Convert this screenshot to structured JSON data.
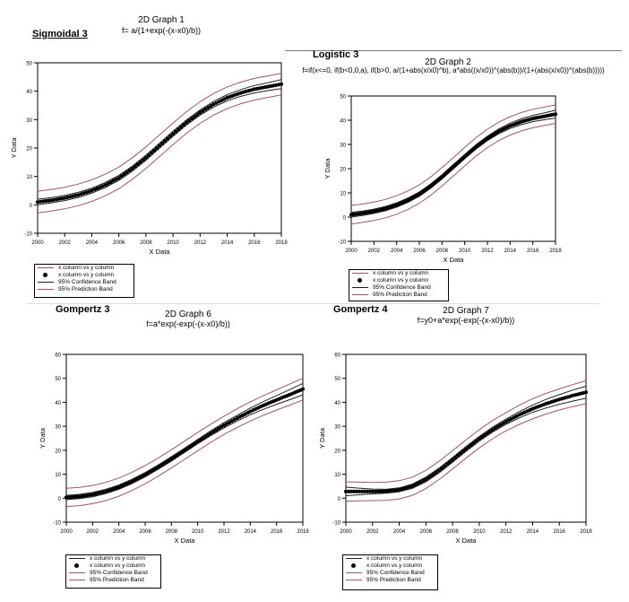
{
  "separator_color": "#777777",
  "colors": {
    "data": "#000000",
    "confidence": "#202020",
    "prediction": "#9a5a5a"
  },
  "charts": [
    {
      "model_label": "Sigmoidal 3",
      "title": "2D Graph 1",
      "formula": "f= a/(1+exp(-(x-x0)/b))",
      "legend": [
        "x column vs y column",
        "x column vs y column",
        "95% Confidence Band",
        "95% Prediction Band"
      ]
    },
    {
      "model_label": "Logistic 3",
      "title": "2D Graph 2",
      "formula": "f=if(x<=0, if(b<0,0,a), if(b>0, a/(1+abs(x/x0)^b), a*abs((x/x0))^(abs(b))/(1+(abs(x/x0))^(abs(b)))))",
      "legend": [
        "x column vs y column",
        "x column vs y column",
        "95% Confidence Band",
        "95% Prediction Band"
      ]
    },
    {
      "model_label": "Gompertz 3",
      "title": "2D Graph 6",
      "formula": "f=a*exp(-exp(-(x-x0)/b))",
      "legend": [
        "x column vs y column",
        "x column vs y column",
        "95% Confidence Band",
        "95% Prediction Band"
      ]
    },
    {
      "model_label": "Gompertz 4",
      "title": "2D Graph 7",
      "formula": "f=y0+a*exp(-exp(-(x-x0)/b))",
      "legend": [
        "x column vs y column",
        "x column vs y column",
        "95% Confidence Band",
        "95% Prediction Band"
      ]
    }
  ],
  "chart_data": [
    {
      "type": "line",
      "title": "2D Graph 1",
      "xlabel": "X Data",
      "ylabel": "Y Data",
      "xlim": [
        2000,
        2018
      ],
      "ylim": [
        -10,
        50
      ],
      "xticks": [
        2000,
        2002,
        2004,
        2006,
        2008,
        2010,
        2012,
        2014,
        2016,
        2018
      ],
      "yticks": [
        -10,
        0,
        10,
        20,
        30,
        40,
        50
      ],
      "x": [
        2000,
        2001,
        2002,
        2003,
        2004,
        2005,
        2006,
        2007,
        2008,
        2009,
        2010,
        2011,
        2012,
        2013,
        2014,
        2015,
        2016,
        2017,
        2018
      ],
      "series": [
        {
          "name": "x column vs y column",
          "values": [
            1.0,
            1.6,
            2.4,
            3.5,
            5.0,
            7.0,
            9.5,
            12.8,
            16.6,
            20.8,
            25.0,
            29.0,
            32.5,
            35.4,
            37.7,
            39.4,
            40.7,
            41.6,
            42.5
          ]
        },
        {
          "name": "95% Confidence Band",
          "values": [
            0.0,
            0.7,
            1.5,
            2.6,
            4.1,
            6.1,
            8.6,
            11.9,
            15.7,
            19.9,
            24.1,
            28.1,
            31.6,
            34.4,
            36.6,
            38.2,
            39.4,
            40.2,
            40.9
          ]
        },
        {
          "name": "95% Confidence Band",
          "values": [
            2.0,
            2.5,
            3.3,
            4.4,
            5.9,
            7.9,
            10.4,
            13.7,
            17.5,
            21.7,
            25.9,
            29.9,
            33.4,
            36.4,
            38.8,
            40.6,
            42.0,
            43.0,
            44.1
          ]
        },
        {
          "name": "95% Prediction Band",
          "values": [
            -2.8,
            -2.2,
            -1.4,
            -0.3,
            1.2,
            3.2,
            5.7,
            9.0,
            12.8,
            17.0,
            21.2,
            25.2,
            28.7,
            31.6,
            33.9,
            35.6,
            36.9,
            37.8,
            38.7
          ]
        },
        {
          "name": "95% Prediction Band",
          "values": [
            4.8,
            5.4,
            6.2,
            7.3,
            8.8,
            10.8,
            13.3,
            16.6,
            20.4,
            24.6,
            28.8,
            32.8,
            36.3,
            39.2,
            41.5,
            43.2,
            44.5,
            45.4,
            46.3
          ]
        }
      ]
    },
    {
      "type": "line",
      "title": "2D Graph 2",
      "xlabel": "X Data",
      "ylabel": "Y Data",
      "xlim": [
        2000,
        2018
      ],
      "ylim": [
        -10,
        50
      ],
      "xticks": [
        2000,
        2002,
        2004,
        2006,
        2008,
        2010,
        2012,
        2014,
        2016,
        2018
      ],
      "yticks": [
        -10,
        0,
        10,
        20,
        30,
        40,
        50
      ],
      "x": [
        2000,
        2001,
        2002,
        2003,
        2004,
        2005,
        2006,
        2007,
        2008,
        2009,
        2010,
        2011,
        2012,
        2013,
        2014,
        2015,
        2016,
        2017,
        2018
      ],
      "series": [
        {
          "name": "x column vs y column",
          "values": [
            1.0,
            1.6,
            2.4,
            3.5,
            5.0,
            7.0,
            9.5,
            12.8,
            16.6,
            20.8,
            25.0,
            29.0,
            32.5,
            35.4,
            37.7,
            39.4,
            40.7,
            41.6,
            42.5
          ]
        },
        {
          "name": "95% Confidence Band",
          "values": [
            0.0,
            0.7,
            1.5,
            2.6,
            4.1,
            6.1,
            8.6,
            11.9,
            15.7,
            19.9,
            24.1,
            28.1,
            31.6,
            34.4,
            36.6,
            38.2,
            39.4,
            40.2,
            40.9
          ]
        },
        {
          "name": "95% Confidence Band",
          "values": [
            2.0,
            2.5,
            3.3,
            4.4,
            5.9,
            7.9,
            10.4,
            13.7,
            17.5,
            21.7,
            25.9,
            29.9,
            33.4,
            36.4,
            38.8,
            40.6,
            42.0,
            43.0,
            44.1
          ]
        },
        {
          "name": "95% Prediction Band",
          "values": [
            -2.8,
            -2.2,
            -1.4,
            -0.3,
            1.2,
            3.2,
            5.7,
            9.0,
            12.8,
            17.0,
            21.2,
            25.2,
            28.7,
            31.6,
            33.9,
            35.6,
            36.9,
            37.8,
            38.7
          ]
        },
        {
          "name": "95% Prediction Band",
          "values": [
            4.8,
            5.4,
            6.2,
            7.3,
            8.8,
            10.8,
            13.3,
            16.6,
            20.4,
            24.6,
            28.8,
            32.8,
            36.3,
            39.2,
            41.5,
            43.2,
            44.5,
            45.4,
            46.3
          ]
        }
      ]
    },
    {
      "type": "line",
      "title": "2D Graph 6",
      "xlabel": "X Data",
      "ylabel": "Y Data",
      "xlim": [
        2000,
        2018
      ],
      "ylim": [
        -10,
        60
      ],
      "xticks": [
        2000,
        2002,
        2004,
        2006,
        2008,
        2010,
        2012,
        2014,
        2016,
        2018
      ],
      "yticks": [
        -10,
        0,
        10,
        20,
        30,
        40,
        50,
        60
      ],
      "x": [
        2000,
        2001,
        2002,
        2003,
        2004,
        2005,
        2006,
        2007,
        2008,
        2009,
        2010,
        2011,
        2012,
        2013,
        2014,
        2015,
        2016,
        2017,
        2018
      ],
      "series": [
        {
          "name": "x column vs y column",
          "values": [
            0.3,
            0.7,
            1.5,
            2.8,
            4.6,
            7.0,
            9.8,
            13.0,
            16.4,
            20.0,
            23.6,
            27.1,
            30.4,
            33.4,
            36.2,
            38.7,
            41.0,
            43.2,
            45.5
          ]
        },
        {
          "name": "95% Confidence Band",
          "values": [
            -0.6,
            -0.2,
            0.6,
            1.9,
            3.7,
            6.1,
            8.9,
            12.1,
            15.5,
            19.1,
            22.7,
            26.1,
            29.3,
            32.2,
            34.8,
            37.1,
            39.2,
            41.1,
            43.1
          ]
        },
        {
          "name": "95% Confidence Band",
          "values": [
            1.2,
            1.6,
            2.4,
            3.7,
            5.5,
            7.9,
            10.7,
            13.9,
            17.3,
            20.9,
            24.5,
            28.1,
            31.5,
            34.6,
            37.6,
            40.3,
            42.8,
            45.3,
            47.9
          ]
        },
        {
          "name": "95% Prediction Band",
          "values": [
            -3.5,
            -3.1,
            -2.3,
            -1.0,
            0.8,
            3.2,
            6.0,
            9.2,
            12.6,
            16.2,
            19.8,
            23.3,
            26.6,
            29.5,
            32.2,
            34.6,
            36.8,
            38.8,
            41.0
          ]
        },
        {
          "name": "95% Prediction Band",
          "values": [
            4.1,
            4.5,
            5.3,
            6.6,
            8.4,
            10.8,
            13.6,
            16.8,
            20.2,
            23.8,
            27.4,
            30.9,
            34.2,
            37.3,
            40.2,
            42.8,
            45.2,
            47.6,
            50.0
          ]
        }
      ]
    },
    {
      "type": "line",
      "title": "2D Graph 7",
      "xlabel": "X Data",
      "ylabel": "Y Data",
      "xlim": [
        2000,
        2018
      ],
      "ylim": [
        -10,
        60
      ],
      "xticks": [
        2000,
        2002,
        2004,
        2006,
        2008,
        2010,
        2012,
        2014,
        2016,
        2018
      ],
      "yticks": [
        -10,
        0,
        10,
        20,
        30,
        40,
        50,
        60
      ],
      "x": [
        2000,
        2001,
        2002,
        2003,
        2004,
        2005,
        2006,
        2007,
        2008,
        2009,
        2010,
        2011,
        2012,
        2013,
        2014,
        2015,
        2016,
        2017,
        2018
      ],
      "series": [
        {
          "name": "x column vs y column",
          "values": [
            2.8,
            2.8,
            2.8,
            2.9,
            3.5,
            5.0,
            7.8,
            11.6,
            16.0,
            20.5,
            24.8,
            28.6,
            31.9,
            34.8,
            37.3,
            39.4,
            41.2,
            42.8,
            44.2
          ]
        },
        {
          "name": "95% Confidence Band",
          "values": [
            1.0,
            1.4,
            1.8,
            2.1,
            2.7,
            4.1,
            6.8,
            10.6,
            15.0,
            19.5,
            23.8,
            27.6,
            30.8,
            33.5,
            35.8,
            37.6,
            39.2,
            40.5,
            41.7
          ]
        },
        {
          "name": "95% Confidence Band",
          "values": [
            4.6,
            4.2,
            3.8,
            3.7,
            4.3,
            5.9,
            8.8,
            12.6,
            17.0,
            21.5,
            25.8,
            29.6,
            33.0,
            36.1,
            38.8,
            41.2,
            43.2,
            45.1,
            46.7
          ]
        },
        {
          "name": "95% Prediction Band",
          "values": [
            -1.2,
            -1.1,
            -1.0,
            -0.9,
            -0.3,
            1.2,
            4.0,
            7.8,
            12.2,
            16.7,
            21.0,
            24.8,
            28.1,
            30.8,
            33.1,
            35.1,
            36.8,
            38.2,
            39.4
          ]
        },
        {
          "name": "95% Prediction Band",
          "values": [
            6.8,
            6.7,
            6.6,
            6.7,
            7.3,
            8.8,
            11.6,
            15.4,
            19.8,
            24.3,
            28.6,
            32.4,
            35.7,
            38.8,
            41.5,
            43.7,
            45.6,
            47.4,
            49.0
          ]
        }
      ]
    }
  ]
}
